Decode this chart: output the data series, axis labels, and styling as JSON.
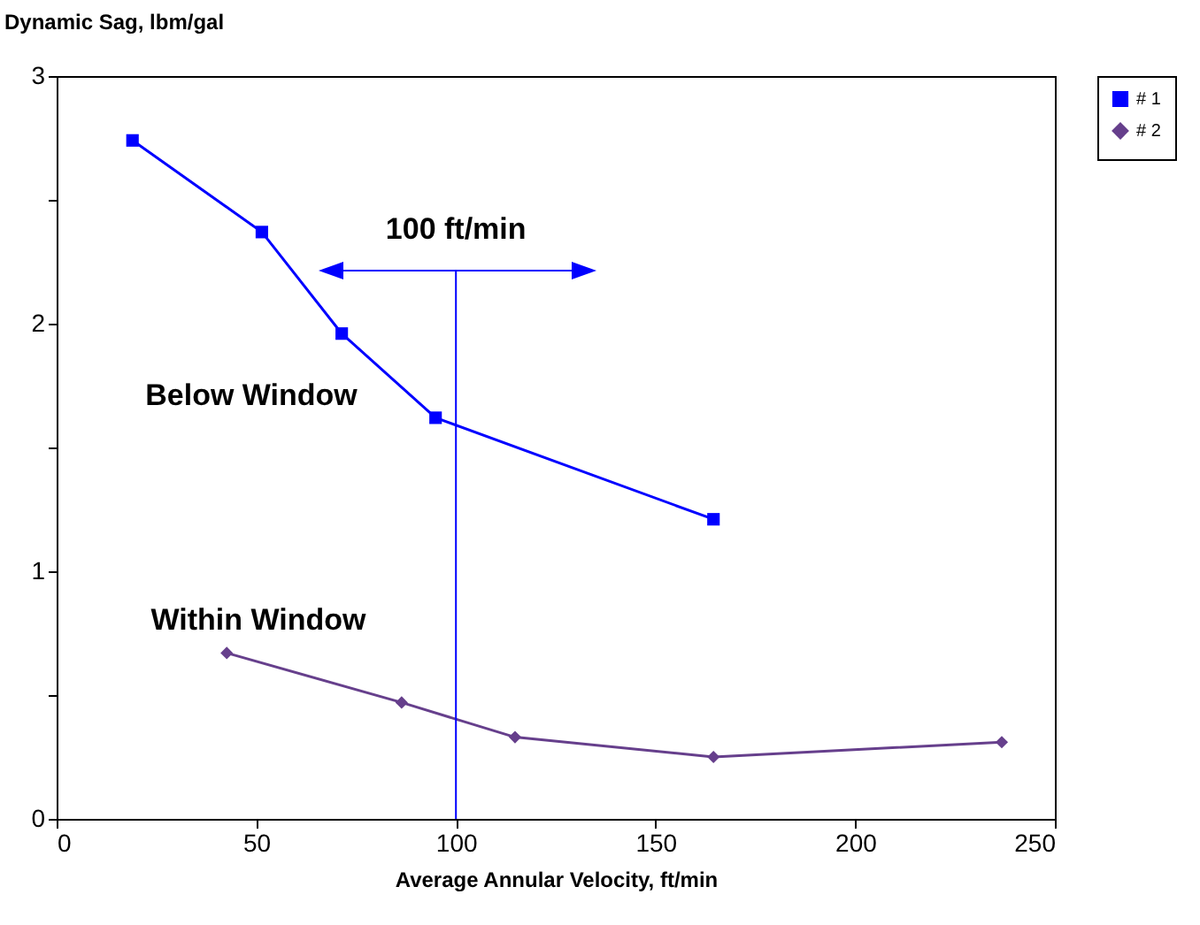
{
  "chart_data": {
    "type": "line",
    "ylabel": "Dynamic Sag, lbm/gal",
    "xlabel": "Average Annular Velocity, ft/min",
    "xlim": [
      0,
      250
    ],
    "xticks": [
      0,
      50,
      100,
      150,
      200,
      250
    ],
    "ylim": [
      0,
      3
    ],
    "yticks": [
      0,
      {
        "value": 0.5,
        "label": null
      },
      1,
      {
        "value": 1.5,
        "label": null
      },
      2,
      {
        "value": 2.5,
        "label": null
      },
      3
    ],
    "series": [
      {
        "name": "# 1",
        "color": "#0000ff",
        "marker": "square",
        "x": [
          19,
          51.4,
          71.4,
          94.9,
          164.5
        ],
        "values": [
          2.74,
          2.37,
          1.96,
          1.62,
          1.21
        ]
      },
      {
        "name": "# 2",
        "color": "#663f8c",
        "marker": "diamond",
        "x": [
          42.6,
          86.4,
          114.8,
          164.5,
          236.7
        ],
        "values": [
          0.67,
          0.47,
          0.33,
          0.25,
          0.31
        ]
      }
    ],
    "ref_lines": [
      {
        "axis": "x",
        "value": 100,
        "label": "100 ft/min",
        "color": "#0000ff"
      }
    ],
    "annotations": [
      "Below Window",
      "Within Window"
    ],
    "grid": false,
    "legend": "top right",
    "line_style": "solid"
  }
}
